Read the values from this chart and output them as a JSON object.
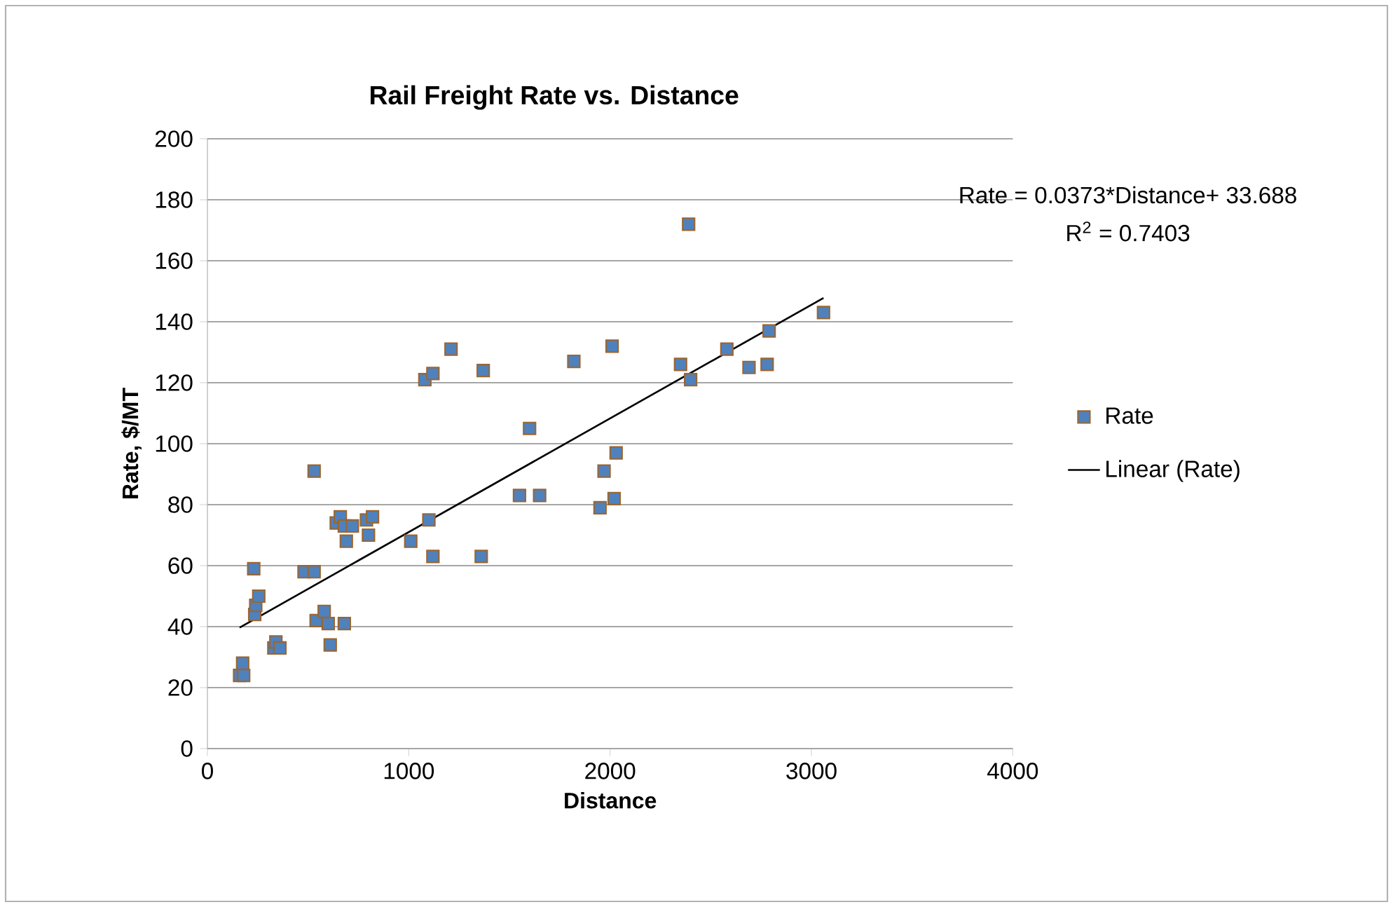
{
  "chart_data": {
    "type": "scatter",
    "title": "Rail Freight Rate vs. Distance",
    "xlabel": "Distance",
    "ylabel": "Rate, $/MT",
    "xlim": [
      0,
      4000
    ],
    "xticks": [
      0,
      1000,
      2000,
      3000,
      4000
    ],
    "ylim": [
      0,
      200
    ],
    "yticks": [
      0,
      20,
      40,
      60,
      80,
      100,
      120,
      140,
      160,
      180,
      200
    ],
    "grid": "y",
    "legend": "right",
    "annotations": [
      "Rate = 0.0373*Distance+ 33.688",
      "R$^{2}$ = 0.7403"
    ],
    "series": [
      {
        "name": "Rate",
        "marker": "square",
        "color": "#4f81bd",
        "x": [
          160,
          175,
          180,
          230,
          235,
          240,
          255,
          330,
          340,
          360,
          480,
          530,
          530,
          540,
          580,
          600,
          610,
          640,
          660,
          680,
          680,
          690,
          720,
          790,
          800,
          820,
          1010,
          1080,
          1100,
          1120,
          1120,
          1210,
          1360,
          1370,
          1550,
          1650,
          1600,
          1820,
          1950,
          1970,
          2010,
          2020,
          2030,
          2350,
          2390,
          2400,
          2580,
          2690,
          2780,
          2790,
          3060
        ],
        "values": [
          24,
          28,
          24,
          59,
          44,
          47,
          50,
          33,
          35,
          33,
          58,
          58,
          91,
          42,
          45,
          41,
          34,
          74,
          76,
          41,
          73,
          68,
          73,
          75,
          70,
          76,
          68,
          121,
          75,
          123,
          63,
          131,
          63,
          124,
          83,
          83,
          105,
          127,
          79,
          91,
          132,
          82,
          97,
          126,
          172,
          121,
          131,
          125,
          126,
          137,
          143
        ]
      },
      {
        "name": "Linear (Rate)",
        "type": "line",
        "marker": "none",
        "color": "#000000",
        "x": [
          160,
          3060
        ],
        "values": [
          39.7,
          147.8
        ]
      }
    ]
  }
}
